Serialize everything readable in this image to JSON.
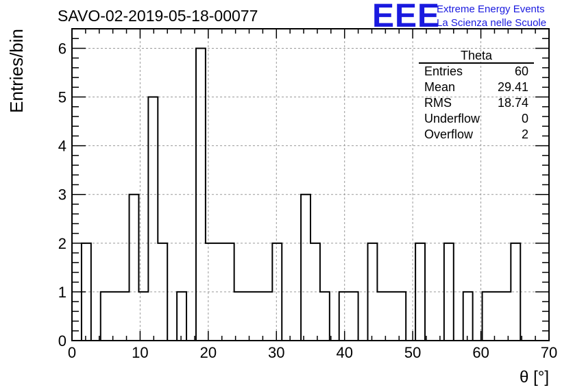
{
  "header": {
    "run_title": "SAVO-02-2019-05-18-00077",
    "logo_text": "EEE",
    "logo_line1": "Extreme Energy Events",
    "logo_line2": "La Scienza nelle Scuole"
  },
  "stats_box": {
    "name": "Theta",
    "rows": [
      {
        "label": "Entries",
        "value": "60"
      },
      {
        "label": "Mean",
        "value": "29.41"
      },
      {
        "label": "RMS",
        "value": "18.74"
      },
      {
        "label": "Underflow",
        "value": "0"
      },
      {
        "label": "Overflow",
        "value": "2"
      }
    ]
  },
  "colors": {
    "accent": "#1a1adf",
    "line": "#000000",
    "grid": "#999999"
  },
  "chart_data": {
    "type": "bar",
    "style": "step-histogram",
    "xlabel": "θ [°]",
    "ylabel": "Entries/bin",
    "xlim": [
      0,
      70
    ],
    "ylim": [
      0,
      6.4
    ],
    "xticks": [
      0,
      10,
      20,
      30,
      40,
      50,
      60,
      70
    ],
    "yticks": [
      0,
      1,
      2,
      3,
      4,
      5,
      6
    ],
    "grid": true,
    "bin_width": 1.4,
    "bin_start": 1.4,
    "values": [
      2,
      0,
      1,
      1,
      1,
      3,
      1,
      5,
      2,
      0,
      1,
      0,
      6,
      2,
      2,
      2,
      1,
      1,
      1,
      1,
      2,
      0,
      0,
      3,
      2,
      1,
      0,
      1,
      1,
      0,
      2,
      1,
      1,
      1,
      0,
      2,
      0,
      0,
      2,
      0,
      1,
      0,
      1,
      1,
      1,
      2
    ]
  }
}
